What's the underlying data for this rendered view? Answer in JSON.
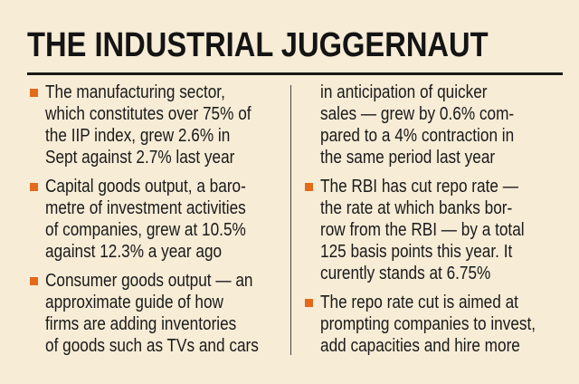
{
  "title": "THE INDUSTRIAL JUGGERNAUT",
  "colors": {
    "background": "#f7ecd6",
    "bullet": "#e26a1a",
    "text": "#1a1a1a"
  },
  "left_column": [
    {
      "lines": [
        "The manufacturing sector,",
        "which constitutes over 75% of",
        "the IIP index, grew 2.6% in",
        "Sept against 2.7% last year"
      ]
    },
    {
      "lines": [
        "Capital goods output, a baro-",
        "metre of investment activities",
        "of companies, grew at 10.5%",
        "against 12.3% a year ago"
      ]
    },
    {
      "lines": [
        "Consumer goods output — an",
        "approximate guide of how",
        "firms are adding inventories",
        "of goods such as TVs and cars"
      ]
    }
  ],
  "right_column": {
    "continuation": [
      "in anticipation of quicker",
      "sales — grew by 0.6% com-",
      "pared to a 4% contraction in",
      "the same period last year"
    ],
    "bullets": [
      {
        "lines": [
          "The RBI has cut repo rate —",
          "the rate at which banks bor-",
          "row from the RBI — by a total",
          "125 basis points this year. It",
          "curently stands at 6.75%"
        ]
      },
      {
        "lines": [
          "The repo rate cut is aimed at",
          "prompting companies to invest,",
          "add capacities and hire more"
        ]
      }
    ]
  }
}
